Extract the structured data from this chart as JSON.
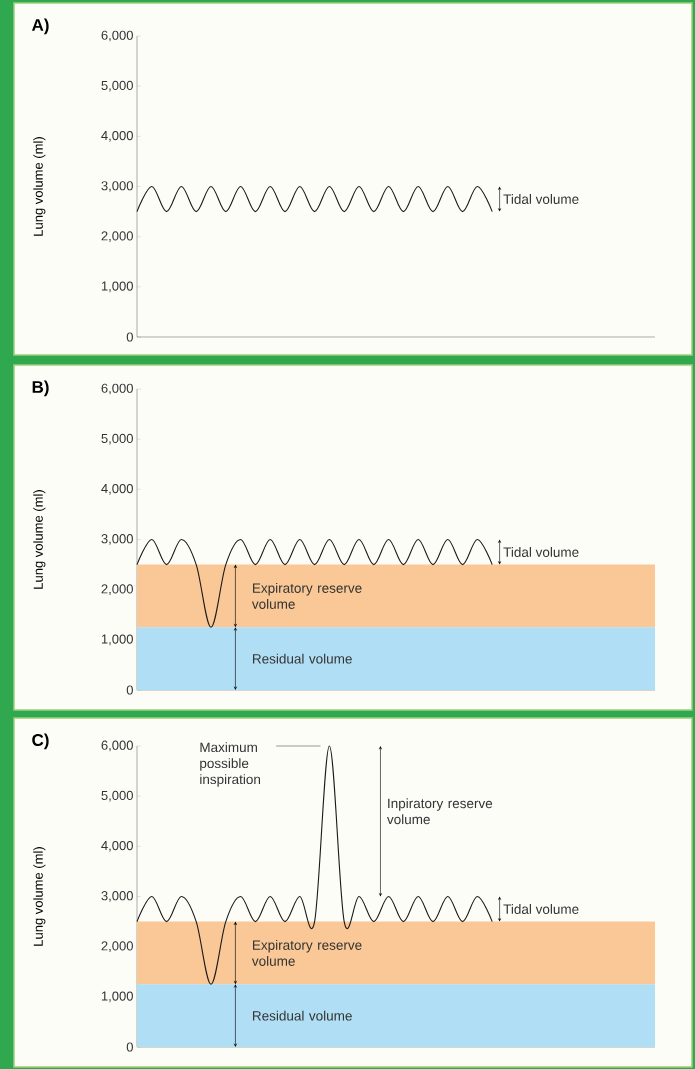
{
  "chart_data": [
    {
      "type": "line",
      "title": "A)",
      "ylabel": "Lung volume (ml)",
      "color": "#1a1a1a",
      "tick_labels": "y",
      "categories": [
        null,
        null,
        null,
        null,
        null,
        null,
        null,
        null,
        null,
        null,
        null,
        null,
        null,
        null,
        null,
        null,
        null,
        null,
        null,
        null,
        null,
        null,
        null,
        null,
        null,
        null,
        null,
        null,
        null,
        null,
        null,
        null,
        null,
        null,
        null,
        null
      ],
      "values": [
        2500,
        3000,
        2500,
        3000,
        2500,
        3000,
        2500,
        3000,
        2500,
        3000,
        2500,
        3000,
        2500,
        3000,
        2500,
        3000,
        2500,
        3000,
        2500,
        3000,
        2500,
        3000,
        2500,
        3000,
        2500,
        null,
        null,
        null,
        null,
        null,
        null,
        null,
        null,
        null,
        null,
        null
      ],
      "ylim": [
        0,
        6000
      ],
      "yticks": [
        {
          "value": 0,
          "label": "0"
        },
        {
          "value": 1000,
          "label": "1,000"
        },
        {
          "value": 2000,
          "label": "2,000"
        },
        {
          "value": 3000,
          "label": "3,000"
        },
        {
          "value": 4000,
          "label": "4,000"
        },
        {
          "value": 5000,
          "label": "5,000"
        },
        {
          "value": 6000,
          "label": "6,000"
        }
      ],
      "annotations": [
        "Tidal volume"
      ]
    },
    {
      "type": "line",
      "title": "B)",
      "ylabel": "Lung volume (ml)",
      "color": "#1a1a1a",
      "tick_labels": "y",
      "categories": [
        null,
        null,
        null,
        null,
        null,
        null,
        null,
        null,
        null,
        null,
        null,
        null,
        null,
        null,
        null,
        null,
        null,
        null,
        null,
        null,
        null,
        null,
        null,
        null,
        null,
        null,
        null,
        null,
        null,
        null,
        null,
        null,
        null,
        null,
        null,
        null
      ],
      "values": [
        2500,
        3000,
        2500,
        3000,
        2500,
        1250,
        2500,
        3000,
        2500,
        3000,
        2500,
        3000,
        2500,
        3000,
        2500,
        3000,
        2500,
        3000,
        2500,
        3000,
        2500,
        3000,
        2500,
        3000,
        2500,
        null,
        null,
        null,
        null,
        null,
        null,
        null,
        null,
        null,
        null,
        null
      ],
      "ylim": [
        0,
        6000
      ],
      "yticks": [
        {
          "value": 0,
          "label": "0"
        },
        {
          "value": 1000,
          "label": "1,000"
        },
        {
          "value": 2000,
          "label": "2,000"
        },
        {
          "value": 3000,
          "label": "3,000"
        },
        {
          "value": 4000,
          "label": "4,000"
        },
        {
          "value": 5000,
          "label": "5,000"
        },
        {
          "value": 6000,
          "label": "6,000"
        }
      ],
      "bands": [
        {
          "axis": "y",
          "from": 1250,
          "to": 2500,
          "label": "Expiratory reserve volume",
          "color": "#f9c896"
        },
        {
          "axis": "y",
          "from": 0,
          "to": 1250,
          "label": "Residual volume",
          "color": "#b0def4"
        }
      ],
      "annotations": [
        "Tidal volume"
      ]
    },
    {
      "type": "line",
      "title": "C)",
      "ylabel": "Lung volume (ml)",
      "color": "#1a1a1a",
      "tick_labels": "y",
      "categories": [
        null,
        null,
        null,
        null,
        null,
        null,
        null,
        null,
        null,
        null,
        null,
        null,
        null,
        null,
        null,
        null,
        null,
        null,
        null,
        null,
        null,
        null,
        null,
        null,
        null,
        null,
        null,
        null,
        null,
        null,
        null,
        null,
        null,
        null,
        null,
        null
      ],
      "values": [
        2500,
        3000,
        2500,
        3000,
        2500,
        1250,
        2500,
        3000,
        2500,
        3000,
        2500,
        3000,
        2500,
        6000,
        2500,
        3000,
        2500,
        3000,
        2500,
        3000,
        2500,
        3000,
        2500,
        3000,
        2500,
        null,
        null,
        null,
        null,
        null,
        null,
        null,
        null,
        null,
        null,
        null
      ],
      "ylim": [
        0,
        6000
      ],
      "yticks": [
        {
          "value": 0,
          "label": "0"
        },
        {
          "value": 1000,
          "label": "1,000"
        },
        {
          "value": 2000,
          "label": "2,000"
        },
        {
          "value": 3000,
          "label": "3,000"
        },
        {
          "value": 4000,
          "label": "4,000"
        },
        {
          "value": 5000,
          "label": "5,000"
        },
        {
          "value": 6000,
          "label": "6,000"
        }
      ],
      "bands": [
        {
          "axis": "y",
          "from": 1250,
          "to": 2500,
          "label": "Expiratory reserve volume",
          "color": "#f9c896"
        },
        {
          "axis": "y",
          "from": 0,
          "to": 1250,
          "label": "Residual volume",
          "color": "#b0def4"
        }
      ],
      "annotations": [
        "Maximum possible inspiration",
        "Inpiratory reserve volume",
        "Tidal volume"
      ]
    }
  ]
}
